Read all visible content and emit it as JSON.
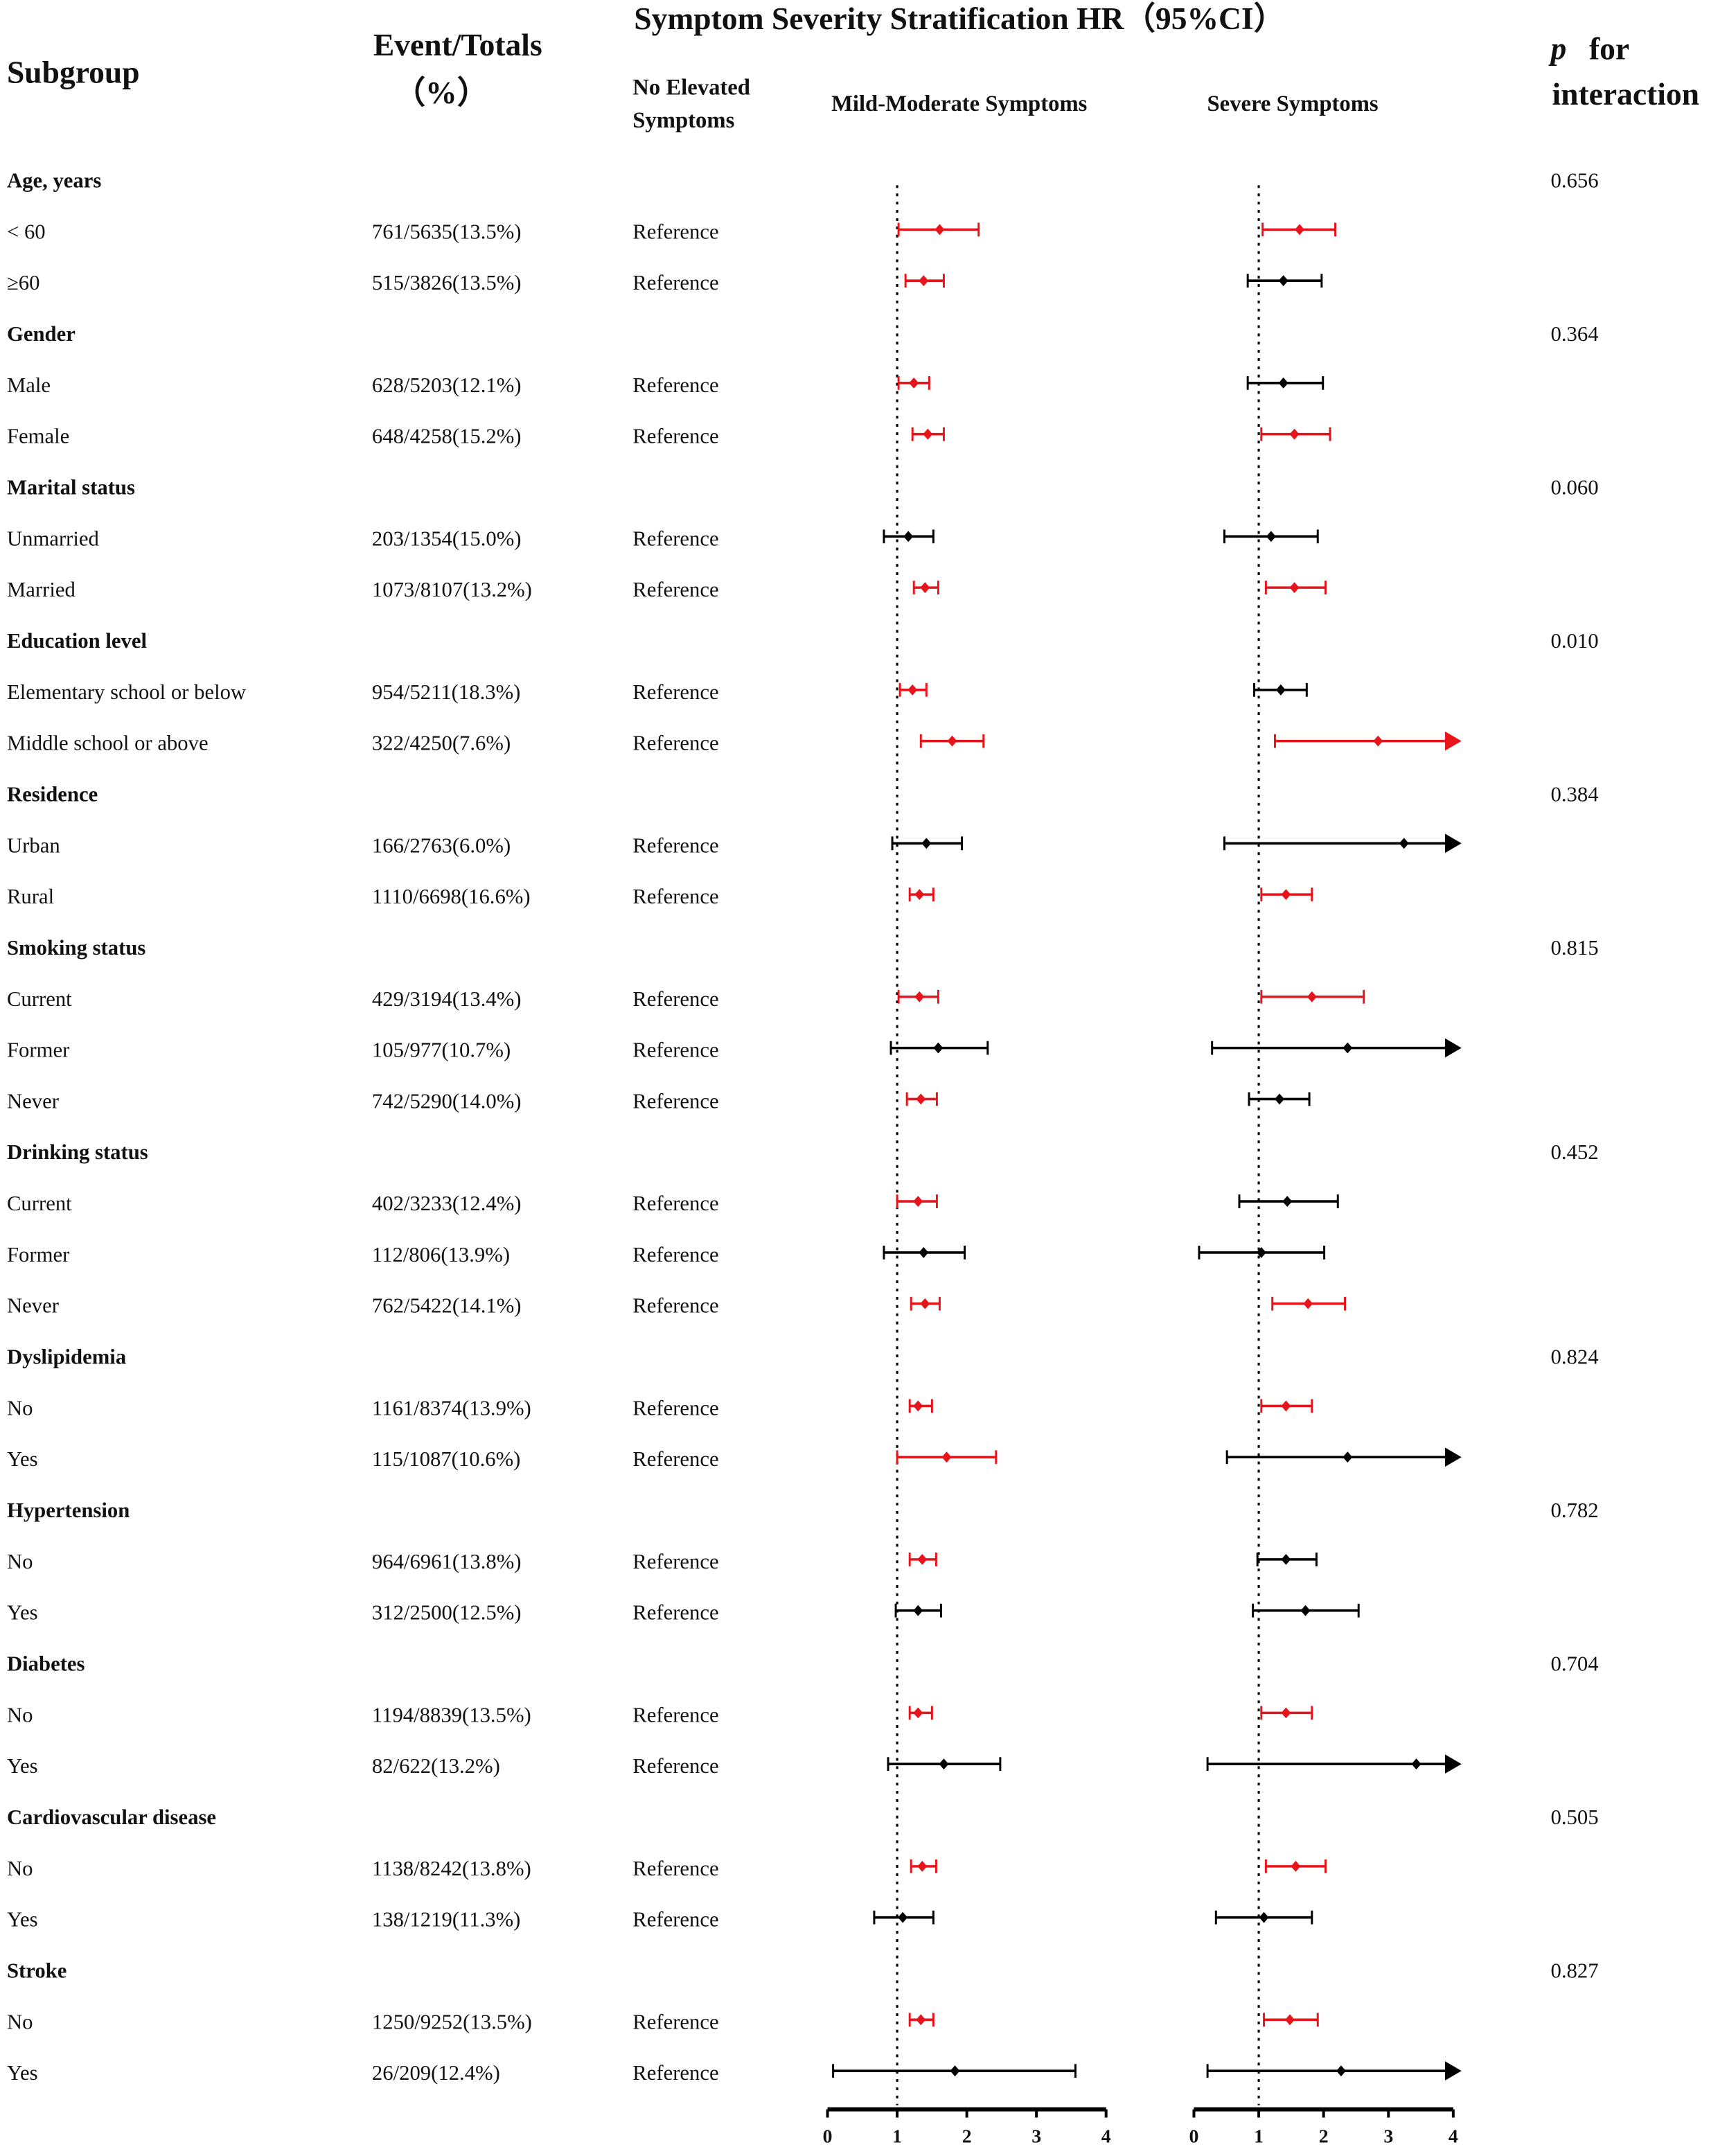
{
  "chart_data": {
    "type": "forest",
    "title": "Symptom Severity Stratification  HR（95%CI）",
    "headers": {
      "subgroup": "Subgroup",
      "events": [
        "Event/Totals",
        "（%）"
      ],
      "no_elevated": [
        "No Elevated",
        "Symptoms"
      ],
      "mild": "Mild-Moderate Symptoms",
      "severe": "Severe Symptoms",
      "p": [
        "p",
        "for",
        "interaction"
      ]
    },
    "panels": {
      "mild": {
        "xlim": [
          0,
          4
        ],
        "xticks": [
          0,
          1,
          2,
          3,
          4
        ],
        "ref_line": 1
      },
      "severe": {
        "xlim": [
          0,
          4
        ],
        "xticks": [
          0,
          1,
          2,
          3,
          4
        ],
        "ref_line": 1
      }
    },
    "rows": [
      {
        "label": "Age, years",
        "heading": true,
        "p": "0.656"
      },
      {
        "label": " < 60",
        "events": "761/5635(13.5%)",
        "reference": "Reference",
        "mild": [
          1.61,
          1.02,
          2.17
        ],
        "mild_color": "#e8141b",
        "severe": [
          1.63,
          1.06,
          2.18
        ],
        "severe_color": "#e8141b"
      },
      {
        "label": "≥60",
        "events": "515/3826(13.5%)",
        "reference": "Reference",
        "mild": [
          1.38,
          1.12,
          1.67
        ],
        "mild_color": "#e8141b",
        "severe": [
          1.38,
          0.83,
          1.97
        ],
        "severe_color": "#000000"
      },
      {
        "label": "Gender",
        "heading": true,
        "p": "0.364"
      },
      {
        "label": "Male",
        "events": "628/5203(12.1%)",
        "reference": "Reference",
        "mild": [
          1.24,
          1.02,
          1.46
        ],
        "mild_color": "#e8141b",
        "severe": [
          1.38,
          0.83,
          1.99
        ],
        "severe_color": "#000000"
      },
      {
        "label": "Female",
        "events": "648/4258(15.2%)",
        "reference": "Reference",
        "mild": [
          1.44,
          1.22,
          1.67
        ],
        "mild_color": "#e8141b",
        "severe": [
          1.55,
          1.04,
          2.1
        ],
        "severe_color": "#e8141b"
      },
      {
        "label": "Marital status",
        "heading": true,
        "p": "0.060"
      },
      {
        "label": "Unmarried",
        "events": "203/1354(15.0%)",
        "reference": "Reference",
        "mild": [
          1.16,
          0.81,
          1.52
        ],
        "mild_color": "#000000",
        "severe": [
          1.19,
          0.47,
          1.91
        ],
        "severe_color": "#000000"
      },
      {
        "label": "Married",
        "events": "1073/8107(13.2%)",
        "reference": "Reference",
        "mild": [
          1.4,
          1.24,
          1.59
        ],
        "mild_color": "#e8141b",
        "severe": [
          1.55,
          1.11,
          2.03
        ],
        "severe_color": "#e8141b"
      },
      {
        "label": "Education level",
        "heading": true,
        "p": "0.010"
      },
      {
        "label": "Elementary school or below",
        "events": "954/5211(18.3%)",
        "reference": "Reference",
        "mild": [
          1.22,
          1.04,
          1.42
        ],
        "mild_color": "#e8141b",
        "severe": [
          1.34,
          0.93,
          1.74
        ],
        "severe_color": "#000000"
      },
      {
        "label": "Middle school or above",
        "events": "322/4250(7.6%)",
        "reference": "Reference",
        "mild": [
          1.79,
          1.34,
          2.24
        ],
        "mild_color": "#e8141b",
        "severe": [
          2.84,
          1.25,
          4.4
        ],
        "severe_color": "#e8141b"
      },
      {
        "label": "Residence",
        "heading": true,
        "p": "0.384"
      },
      {
        "label": "Urban",
        "events": "166/2763(6.0%)",
        "reference": "Reference",
        "mild": [
          1.42,
          0.93,
          1.93
        ],
        "mild_color": "#000000",
        "severe": [
          3.24,
          0.47,
          4.4
        ],
        "severe_color": "#000000"
      },
      {
        "label": "Rural",
        "events": "1110/6698(16.6%)",
        "reference": "Reference",
        "mild": [
          1.32,
          1.18,
          1.52
        ],
        "mild_color": "#e8141b",
        "severe": [
          1.42,
          1.04,
          1.82
        ],
        "severe_color": "#e8141b"
      },
      {
        "label": "Smoking status",
        "heading": true,
        "p": "0.815"
      },
      {
        "label": "Current",
        "events": "429/3194(13.4%)",
        "reference": "Reference",
        "mild": [
          1.32,
          1.02,
          1.59
        ],
        "mild_color": "#e8141b",
        "severe": [
          1.82,
          1.04,
          2.62
        ],
        "severe_color": "#e8141b"
      },
      {
        "label": "Former",
        "events": "105/977(10.7%)",
        "reference": "Reference",
        "mild": [
          1.59,
          0.91,
          2.3
        ],
        "mild_color": "#000000",
        "severe": [
          2.37,
          0.28,
          4.4
        ],
        "severe_color": "#000000"
      },
      {
        "label": "Never",
        "events": "742/5290(14.0%)",
        "reference": "Reference",
        "mild": [
          1.34,
          1.14,
          1.57
        ],
        "mild_color": "#e8141b",
        "severe": [
          1.32,
          0.85,
          1.78
        ],
        "severe_color": "#000000"
      },
      {
        "label": "Drinking status",
        "heading": true,
        "p": "0.452"
      },
      {
        "label": "Current",
        "events": "402/3233(12.4%)",
        "reference": "Reference",
        "mild": [
          1.3,
          1.0,
          1.57
        ],
        "mild_color": "#e8141b",
        "severe": [
          1.44,
          0.7,
          2.22
        ],
        "severe_color": "#000000"
      },
      {
        "label": "Former",
        "events": "112/806(13.9%)",
        "reference": "Reference",
        "mild": [
          1.38,
          0.81,
          1.97
        ],
        "mild_color": "#000000",
        "severe": [
          1.04,
          0.08,
          2.01
        ],
        "severe_color": "#000000"
      },
      {
        "label": "Never",
        "events": "762/5422(14.1%)",
        "reference": "Reference",
        "mild": [
          1.4,
          1.2,
          1.61
        ],
        "mild_color": "#e8141b",
        "severe": [
          1.76,
          1.21,
          2.33
        ],
        "severe_color": "#e8141b"
      },
      {
        "label": "Dyslipidemia",
        "heading": true,
        "p": "0.824"
      },
      {
        "label": "No",
        "events": "1161/8374(13.9%)",
        "reference": "Reference",
        "mild": [
          1.3,
          1.18,
          1.5
        ],
        "mild_color": "#e8141b",
        "severe": [
          1.42,
          1.04,
          1.82
        ],
        "severe_color": "#e8141b"
      },
      {
        "label": "Yes",
        "events": "115/1087(10.6%)",
        "reference": "Reference",
        "mild": [
          1.71,
          1.0,
          2.42
        ],
        "mild_color": "#e8141b",
        "severe": [
          2.37,
          0.51,
          4.4
        ],
        "severe_color": "#000000"
      },
      {
        "label": "Hypertension",
        "heading": true,
        "p": "0.782"
      },
      {
        "label": "No",
        "events": "964/6961(13.8%)",
        "reference": "Reference",
        "mild": [
          1.36,
          1.18,
          1.56
        ],
        "mild_color": "#e8141b",
        "severe": [
          1.42,
          0.98,
          1.89
        ],
        "severe_color": "#000000"
      },
      {
        "label": "Yes",
        "events": "312/2500(12.5%)",
        "reference": "Reference",
        "mild": [
          1.3,
          0.98,
          1.63
        ],
        "mild_color": "#000000",
        "severe": [
          1.72,
          0.91,
          2.54
        ],
        "severe_color": "#000000"
      },
      {
        "label": "Diabetes",
        "heading": true,
        "p": "0.704"
      },
      {
        "label": "No",
        "events": "1194/8839(13.5%)",
        "reference": "Reference",
        "mild": [
          1.3,
          1.18,
          1.5
        ],
        "mild_color": "#e8141b",
        "severe": [
          1.42,
          1.04,
          1.82
        ],
        "severe_color": "#e8141b"
      },
      {
        "label": "Yes",
        "events": "82/622(13.2%)",
        "reference": "Reference",
        "mild": [
          1.67,
          0.87,
          2.48
        ],
        "mild_color": "#000000",
        "severe": [
          3.43,
          0.21,
          4.4
        ],
        "severe_color": "#000000"
      },
      {
        "label": "Cardiovascular disease",
        "heading": true,
        "p": "0.505"
      },
      {
        "label": "No",
        "events": "1138/8242(13.8%)",
        "reference": "Reference",
        "mild": [
          1.36,
          1.2,
          1.56
        ],
        "mild_color": "#e8141b",
        "severe": [
          1.57,
          1.11,
          2.03
        ],
        "severe_color": "#e8141b"
      },
      {
        "label": "Yes",
        "events": "138/1219(11.3%)",
        "reference": "Reference",
        "mild": [
          1.08,
          0.67,
          1.52
        ],
        "mild_color": "#000000",
        "severe": [
          1.08,
          0.34,
          1.82
        ],
        "severe_color": "#000000"
      },
      {
        "label": "Stroke",
        "heading": true,
        "p": "0.827"
      },
      {
        "label": "No",
        "events": "1250/9252(13.5%)",
        "reference": "Reference",
        "mild": [
          1.34,
          1.18,
          1.52
        ],
        "mild_color": "#e8141b",
        "severe": [
          1.48,
          1.08,
          1.91
        ],
        "severe_color": "#e8141b"
      },
      {
        "label": "Yes",
        "events": "26/209(12.4%)",
        "reference": "Reference",
        "mild": [
          1.83,
          0.08,
          3.56
        ],
        "mild_color": "#000000",
        "severe": [
          2.27,
          0.21,
          4.4
        ],
        "severe_color": "#000000"
      }
    ]
  }
}
